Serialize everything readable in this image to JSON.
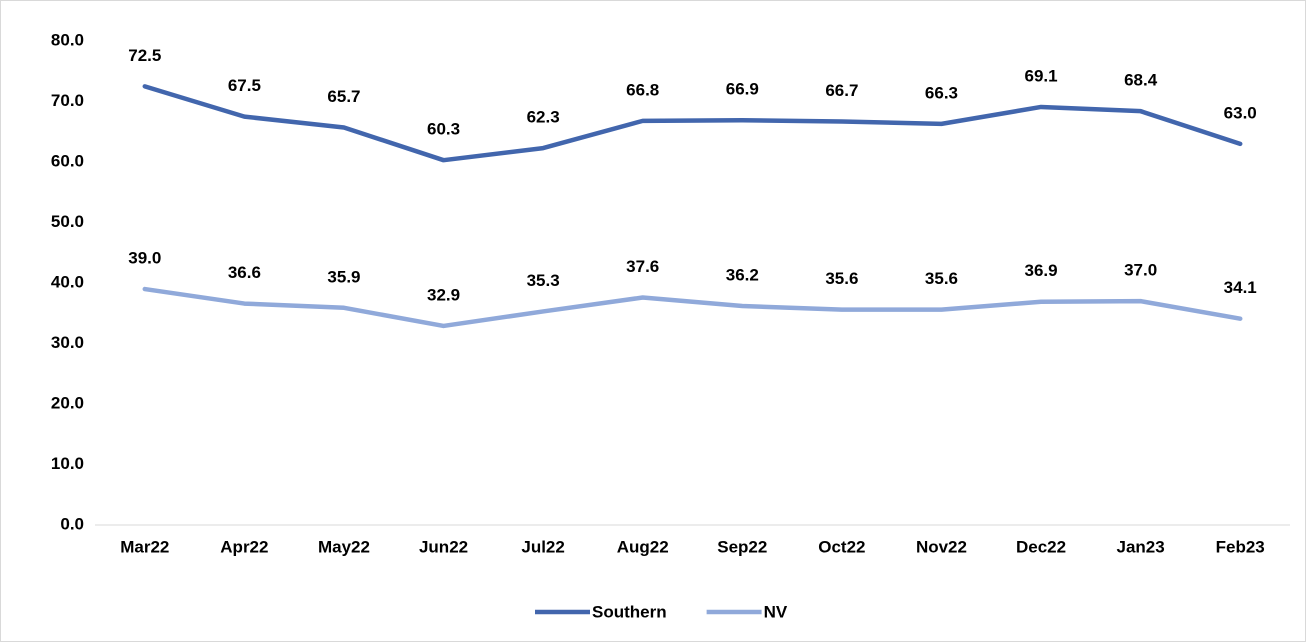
{
  "chart_data": {
    "type": "line",
    "categories": [
      "Mar22",
      "Apr22",
      "May22",
      "Jun22",
      "Jul22",
      "Aug22",
      "Sep22",
      "Oct22",
      "Nov22",
      "Dec22",
      "Jan23",
      "Feb23"
    ],
    "series": [
      {
        "name": "Southern",
        "color": "#4266ad",
        "values": [
          72.5,
          67.5,
          65.7,
          60.3,
          62.3,
          66.8,
          66.9,
          66.7,
          66.3,
          69.1,
          68.4,
          63.0
        ],
        "value_labels": [
          "72.5",
          "67.5",
          "65.7",
          "60.3",
          "62.3",
          "66.8",
          "66.9",
          "66.7",
          "66.3",
          "69.1",
          "68.4",
          "63.0"
        ]
      },
      {
        "name": "NV",
        "color": "#90a9da",
        "values": [
          39.0,
          36.6,
          35.9,
          32.9,
          35.3,
          37.6,
          36.2,
          35.6,
          35.6,
          36.9,
          37.0,
          34.1
        ],
        "value_labels": [
          "39.0",
          "36.6",
          "35.9",
          "32.9",
          "35.3",
          "37.6",
          "36.2",
          "35.6",
          "35.6",
          "36.9",
          "37.0",
          "34.1"
        ]
      }
    ],
    "ylim": [
      0,
      80
    ],
    "yticks": [
      {
        "value": 0,
        "label": "0.0"
      },
      {
        "value": 10,
        "label": "10.0"
      },
      {
        "value": 20,
        "label": "20.0"
      },
      {
        "value": 30,
        "label": "30.0"
      },
      {
        "value": 40,
        "label": "40.0"
      },
      {
        "value": 50,
        "label": "50.0"
      },
      {
        "value": 60,
        "label": "60.0"
      },
      {
        "value": 70,
        "label": "70.0"
      },
      {
        "value": 80,
        "label": "80.0"
      }
    ],
    "grid": false,
    "legend": "bottom"
  }
}
